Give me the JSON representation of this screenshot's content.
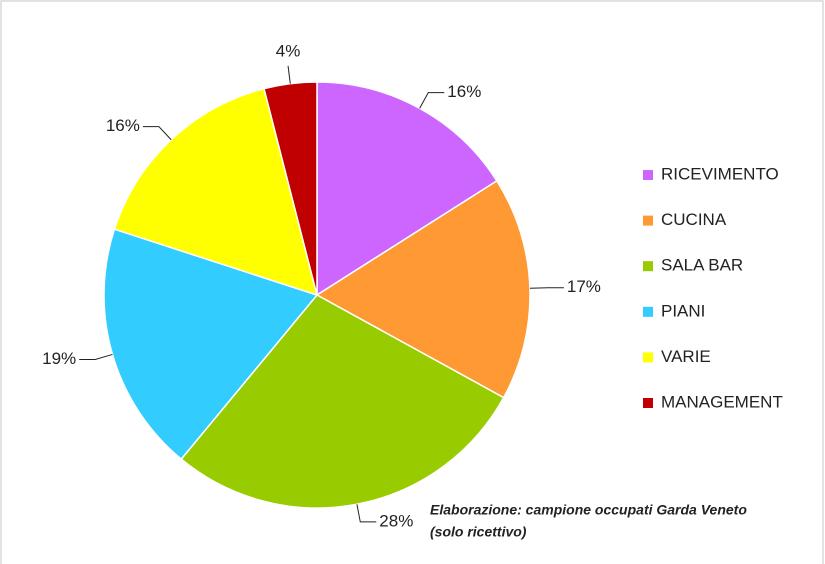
{
  "chart_data": {
    "type": "pie",
    "categories": [
      "RICEVIMENTO",
      "CUCINA",
      "SALA BAR",
      "PIANI",
      "VARIE",
      "MANAGEMENT"
    ],
    "values": [
      16,
      17,
      28,
      19,
      16,
      4
    ],
    "value_labels": [
      "16%",
      "17%",
      "28%",
      "19%",
      "16%",
      "4%"
    ],
    "colors": [
      "#cc66ff",
      "#ff9933",
      "#99cc00",
      "#33ccff",
      "#ffff00",
      "#c00000"
    ],
    "legend": "right",
    "annotation": [
      "Elaborazione: campione occupati Garda Veneto",
      "(solo ricettivo)"
    ]
  }
}
